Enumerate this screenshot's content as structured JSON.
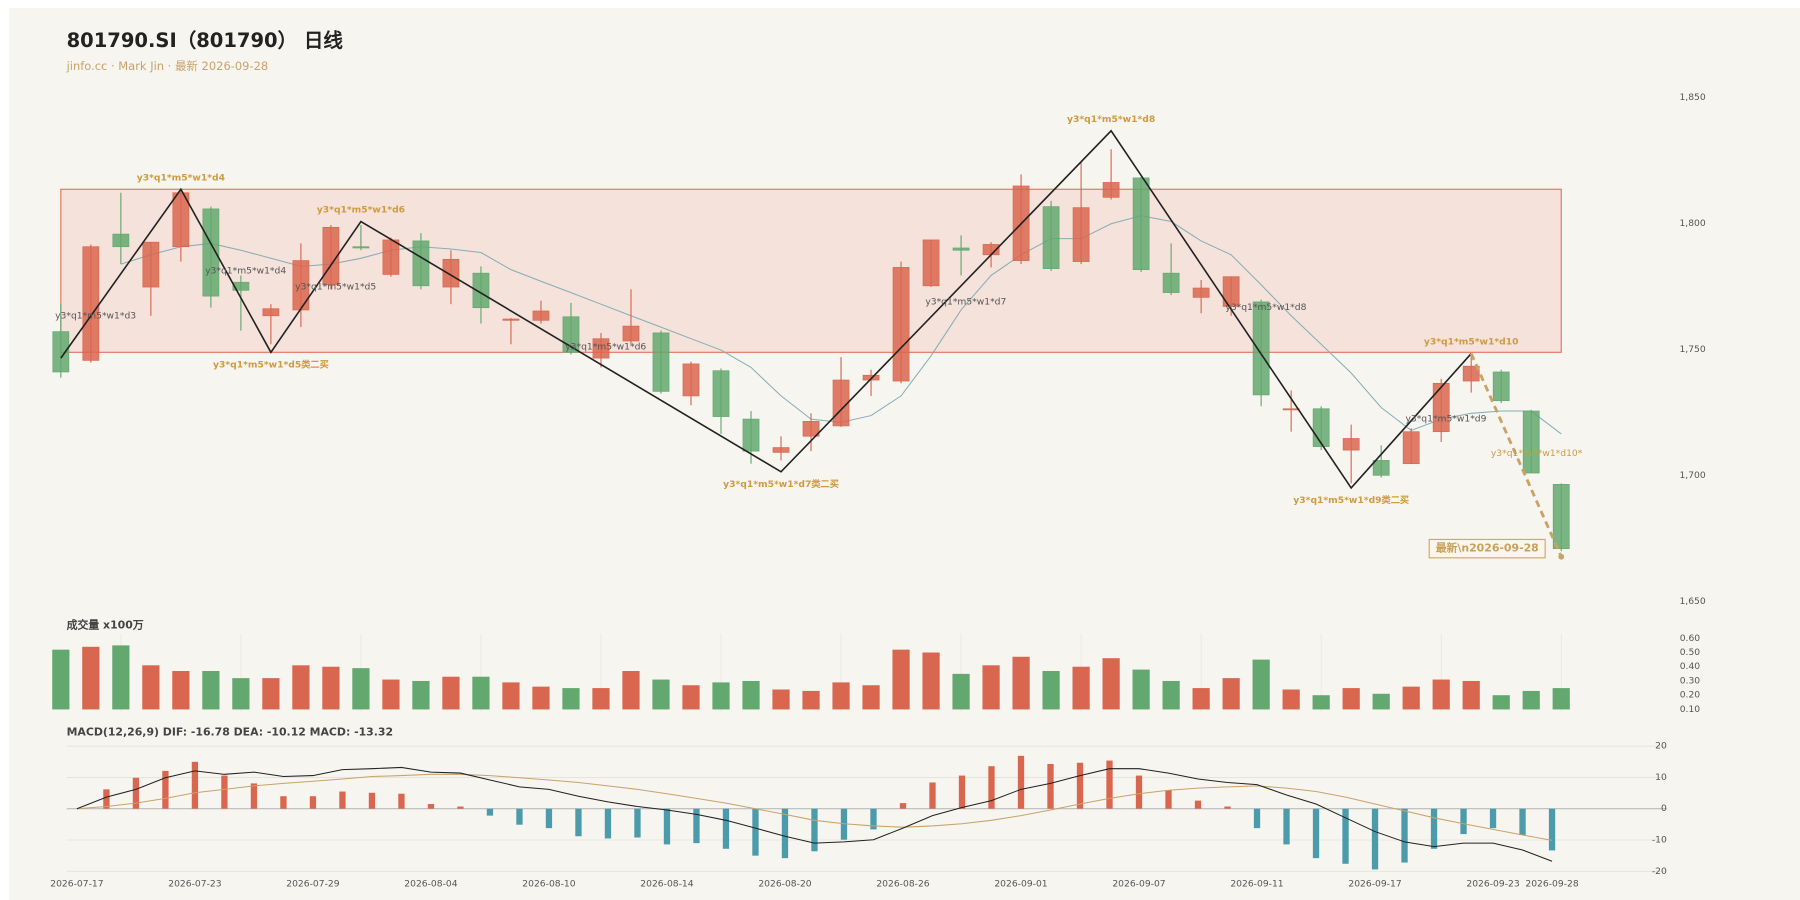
{
  "header": {
    "title": "801790.SI（801790） 日线",
    "subtitle": "jinfo.cc · Mark Jin · 最新 2026-09-28"
  },
  "chart_data": [
    {
      "type": "candlestick",
      "up_color": "#d9664f",
      "down_color": "#63a86f",
      "open": [
        1757.1,
        1745.7,
        1795.8,
        1774.8,
        1790.8,
        1805.8,
        1776.7,
        1763.4,
        1765.7,
        1775.7,
        1790.8,
        1779.8,
        1793.1,
        1774.8,
        1780.3,
        1761.6,
        1761.6,
        1763.0,
        1746.6,
        1753.4,
        1756.6,
        1731.6,
        1741.6,
        1722.4,
        1709.2,
        1715.6,
        1719.7,
        1737.9,
        1737.5,
        1775.3,
        1790.3,
        1787.6,
        1785.3,
        1806.7,
        1784.9,
        1810.4,
        1818.1,
        1780.3,
        1770.7,
        1767.1,
        1768.9,
        1726.1,
        1726.5,
        1710.1,
        1706.0,
        1704.7,
        1717.4,
        1737.5,
        1741.1,
        1725.6,
        1696.5
      ],
      "high": [
        1768.0,
        1791.7,
        1812.2,
        1792.6,
        1813.6,
        1806.7,
        1779.4,
        1768.0,
        1792.1,
        1799.4,
        1799.4,
        1794.4,
        1796.2,
        1789.4,
        1783.0,
        1762.5,
        1769.4,
        1768.5,
        1756.6,
        1773.9,
        1757.5,
        1745.2,
        1742.5,
        1725.6,
        1715.6,
        1724.7,
        1747.0,
        1742.0,
        1784.9,
        1793.5,
        1795.3,
        1792.6,
        1819.5,
        1809.0,
        1824.5,
        1829.5,
        1818.6,
        1792.1,
        1777.6,
        1778.9,
        1769.8,
        1733.8,
        1727.5,
        1720.2,
        1712.0,
        1718.8,
        1738.4,
        1748.0,
        1742.0,
        1726.1,
        1696.9
      ],
      "low": [
        1738.8,
        1744.8,
        1783.9,
        1763.4,
        1784.9,
        1766.6,
        1757.5,
        1752.1,
        1758.9,
        1773.9,
        1789.4,
        1778.9,
        1773.9,
        1768.0,
        1760.3,
        1752.1,
        1760.3,
        1748.0,
        1742.9,
        1752.1,
        1732.5,
        1727.9,
        1716.5,
        1704.7,
        1706.0,
        1709.7,
        1719.3,
        1731.6,
        1736.6,
        1774.8,
        1779.4,
        1782.6,
        1783.9,
        1781.2,
        1783.9,
        1809.5,
        1780.8,
        1771.6,
        1764.4,
        1763.4,
        1727.5,
        1717.4,
        1710.1,
        1696.9,
        1699.2,
        1704.7,
        1713.3,
        1732.9,
        1728.8,
        1701.0,
        1670.0
      ],
      "close": [
        1741.1,
        1790.8,
        1790.8,
        1792.6,
        1812.2,
        1771.2,
        1773.5,
        1766.2,
        1785.3,
        1798.5,
        1790.3,
        1793.5,
        1775.3,
        1785.8,
        1766.6,
        1762.1,
        1765.3,
        1748.9,
        1754.3,
        1759.3,
        1733.4,
        1744.3,
        1723.4,
        1709.7,
        1711.1,
        1721.5,
        1737.9,
        1739.8,
        1782.6,
        1793.5,
        1789.4,
        1791.7,
        1814.9,
        1782.1,
        1806.3,
        1816.3,
        1781.7,
        1772.6,
        1774.4,
        1778.9,
        1732.0,
        1726.5,
        1711.5,
        1714.7,
        1700.1,
        1717.4,
        1736.6,
        1743.4,
        1729.7,
        1701.0,
        1671.0
      ],
      "ma": {
        "color": "#86aeb4",
        "values": [
          null,
          null,
          1783.9,
          1787.6,
          1790.8,
          1792.1,
          1789.4,
          1786.2,
          1783.0,
          1783.9,
          1786.2,
          1789.4,
          1790.8,
          1789.9,
          1788.5,
          1781.7,
          1777.1,
          1772.6,
          1768.0,
          1763.4,
          1758.9,
          1754.3,
          1749.8,
          1742.9,
          1731.6,
          1722.4,
          1721.1,
          1723.8,
          1731.6,
          1747.5,
          1765.7,
          1779.4,
          1787.6,
          1794.0,
          1794.0,
          1799.9,
          1803.1,
          1800.8,
          1793.1,
          1787.6,
          1775.7,
          1763.4,
          1752.1,
          1740.7,
          1727.0,
          1717.9,
          1722.4,
          1724.7,
          1725.6,
          1725.6,
          1716.5
        ]
      },
      "ylim": [
        1645,
        1860
      ],
      "yticks": [
        {
          "value": 1650,
          "label": "1,650"
        },
        {
          "value": 1700,
          "label": "1,700"
        },
        {
          "value": 1750,
          "label": "1,750"
        },
        {
          "value": 1800,
          "label": "1,800"
        },
        {
          "value": 1850,
          "label": "1,850"
        }
      ],
      "zone": {
        "high": 1813.6,
        "low": 1748.9,
        "color": "#e3735f"
      },
      "zigzag": {
        "color": "#222222",
        "points": [
          {
            "i": 0,
            "value": 1746.6
          },
          {
            "i": 4,
            "value": 1813.6
          },
          {
            "i": 7,
            "value": 1748.9
          },
          {
            "i": 10,
            "value": 1800.8
          },
          {
            "i": 24,
            "value": 1701.5
          },
          {
            "i": 35,
            "value": 1836.8
          },
          {
            "i": 43,
            "value": 1695.1
          },
          {
            "i": 47,
            "value": 1748.4
          }
        ]
      },
      "projection": {
        "color": "#c9a264",
        "points": [
          {
            "i": 47,
            "value": 1748.4
          },
          {
            "i": 50,
            "value": 1667.8
          }
        ]
      },
      "annotations": [
        {
          "text": "y3*q1*m5*w1*d4",
          "i": 4,
          "value": 1813.6,
          "style": "peak"
        },
        {
          "text": "y3*q1*m5*w1*d6",
          "i": 10,
          "value": 1800.8,
          "style": "peak"
        },
        {
          "text": "y3*q1*m5*w1*d8",
          "i": 35,
          "value": 1836.8,
          "style": "peak"
        },
        {
          "text": "y3*q1*m5*w1*d10",
          "i": 47,
          "value": 1748.4,
          "style": "peak"
        },
        {
          "text": "y3*q1*m5*w1*d5类二买",
          "i": 7,
          "value": 1748.9,
          "style": "trough"
        },
        {
          "text": "y3*q1*m5*w1*d7类二买",
          "i": 24,
          "value": 1701.5,
          "style": "trough"
        },
        {
          "text": "y3*q1*m5*w1*d9类二买",
          "i": 43,
          "value": 1695.1,
          "style": "trough"
        },
        {
          "text": "y3*q1*m5*w1*d3",
          "i": 0,
          "value": 1763.4,
          "style": "note"
        },
        {
          "text": "y3*q1*m5*w1*d4",
          "i": 5,
          "value": 1781.2,
          "style": "note"
        },
        {
          "text": "y3*q1*m5*w1*d5",
          "i": 8,
          "value": 1774.8,
          "style": "note"
        },
        {
          "text": "y3*q1*m5*w1*d6",
          "i": 17,
          "value": 1751.1,
          "style": "note"
        },
        {
          "text": "y3*q1*m5*w1*d7",
          "i": 29,
          "value": 1768.9,
          "style": "note"
        },
        {
          "text": "y3*q1*m5*w1*d8",
          "i": 39,
          "value": 1766.6,
          "style": "note"
        },
        {
          "text": "y3*q1*m5*w1*d9",
          "i": 45,
          "value": 1722.4,
          "style": "note"
        },
        {
          "text": "y3*q1*m5*w1*d10*",
          "i": 48,
          "value": 1708.8,
          "style": "note-hl"
        }
      ],
      "latest": {
        "text": "最新\\n2026-09-28",
        "value": 1671.0
      }
    },
    {
      "type": "bar",
      "title": "成交量 x100万",
      "values": [
        0.52,
        0.54,
        0.55,
        0.41,
        0.37,
        0.37,
        0.32,
        0.32,
        0.41,
        0.4,
        0.39,
        0.31,
        0.3,
        0.33,
        0.33,
        0.29,
        0.26,
        0.25,
        0.25,
        0.37,
        0.31,
        0.27,
        0.29,
        0.3,
        0.24,
        0.23,
        0.29,
        0.27,
        0.52,
        0.5,
        0.35,
        0.41,
        0.47,
        0.37,
        0.4,
        0.46,
        0.38,
        0.3,
        0.25,
        0.32,
        0.45,
        0.24,
        0.2,
        0.25,
        0.21,
        0.26,
        0.31,
        0.3,
        0.2,
        0.23,
        0.25
      ],
      "ylim": [
        0.1,
        0.6
      ],
      "yticks": [
        {
          "value": 0.1,
          "label": "0.10"
        },
        {
          "value": 0.2,
          "label": "0.20"
        },
        {
          "value": 0.3,
          "label": "0.30"
        },
        {
          "value": 0.4,
          "label": "0.40"
        },
        {
          "value": 0.5,
          "label": "0.50"
        },
        {
          "value": 0.6,
          "label": "0.60"
        }
      ]
    },
    {
      "type": "macd",
      "title": "MACD(12,26,9) DIF: -16.78 DEA: -10.12 MACD: -13.32",
      "categories": [
        "2026-07-17",
        null,
        null,
        null,
        "2026-07-23",
        null,
        null,
        null,
        "2026-07-29",
        null,
        null,
        null,
        "2026-08-04",
        null,
        null,
        null,
        "2026-08-10",
        null,
        null,
        null,
        "2026-08-14",
        null,
        null,
        null,
        "2026-08-20",
        null,
        null,
        null,
        "2026-08-26",
        null,
        null,
        null,
        "2026-09-01",
        null,
        null,
        null,
        "2026-09-07",
        null,
        null,
        null,
        "2026-09-11",
        null,
        null,
        null,
        "2026-09-17",
        null,
        null,
        null,
        "2026-09-23",
        null,
        "2026-09-28"
      ],
      "hist": [
        0,
        6.2,
        9.9,
        12.1,
        15.0,
        10.6,
        8.1,
        4.0,
        4.0,
        5.5,
        5.1,
        4.8,
        1.5,
        0.7,
        -2.2,
        -5.1,
        -6.2,
        -8.8,
        -9.5,
        -9.2,
        -11.4,
        -11.0,
        -12.8,
        -15.0,
        -15.8,
        -13.6,
        -9.9,
        -6.6,
        1.8,
        8.4,
        10.6,
        13.6,
        16.9,
        14.3,
        14.7,
        15.4,
        10.6,
        5.9,
        2.6,
        0.7,
        -6.2,
        -11.4,
        -15.8,
        -17.6,
        -19.4,
        -17.2,
        -12.8,
        -8.1,
        -6.2,
        -8.4,
        -13.32
      ],
      "dif": [
        0,
        3.7,
        6.2,
        9.9,
        12.1,
        11.0,
        11.7,
        10.3,
        10.6,
        12.5,
        12.8,
        13.2,
        11.7,
        11.4,
        9.2,
        7.0,
        6.2,
        4.0,
        2.2,
        0.7,
        -0.4,
        -1.8,
        -3.7,
        -6.2,
        -8.8,
        -11.0,
        -10.6,
        -9.9,
        -6.2,
        -2.2,
        0.4,
        2.6,
        6.2,
        8.1,
        10.6,
        12.8,
        12.8,
        11.4,
        9.5,
        8.4,
        7.7,
        4.4,
        1.5,
        -2.9,
        -7.3,
        -10.6,
        -12.1,
        -11.0,
        -11.0,
        -13.2,
        -16.78
      ],
      "dea": [
        0,
        0.7,
        1.8,
        3.3,
        5.1,
        6.2,
        7.3,
        8.1,
        8.8,
        9.5,
        10.3,
        10.6,
        11.0,
        11.0,
        10.6,
        9.9,
        9.2,
        8.4,
        7.3,
        6.2,
        4.8,
        3.3,
        1.8,
        0.0,
        -1.8,
        -3.7,
        -4.8,
        -5.5,
        -5.9,
        -5.5,
        -4.8,
        -3.7,
        -2.2,
        -0.4,
        1.5,
        3.3,
        4.8,
        5.9,
        6.6,
        7.0,
        7.3,
        6.6,
        5.5,
        3.7,
        1.5,
        -0.7,
        -2.9,
        -4.8,
        -6.6,
        -8.4,
        -10.12
      ],
      "dif_color": "#222222",
      "dea_color": "#c9a26a",
      "hist_up_color": "#d9664f",
      "hist_down_color": "#4b9bab",
      "ylim": [
        -20,
        20
      ],
      "yticks": [
        -20,
        -10,
        0,
        10,
        20
      ],
      "grid": true
    }
  ]
}
